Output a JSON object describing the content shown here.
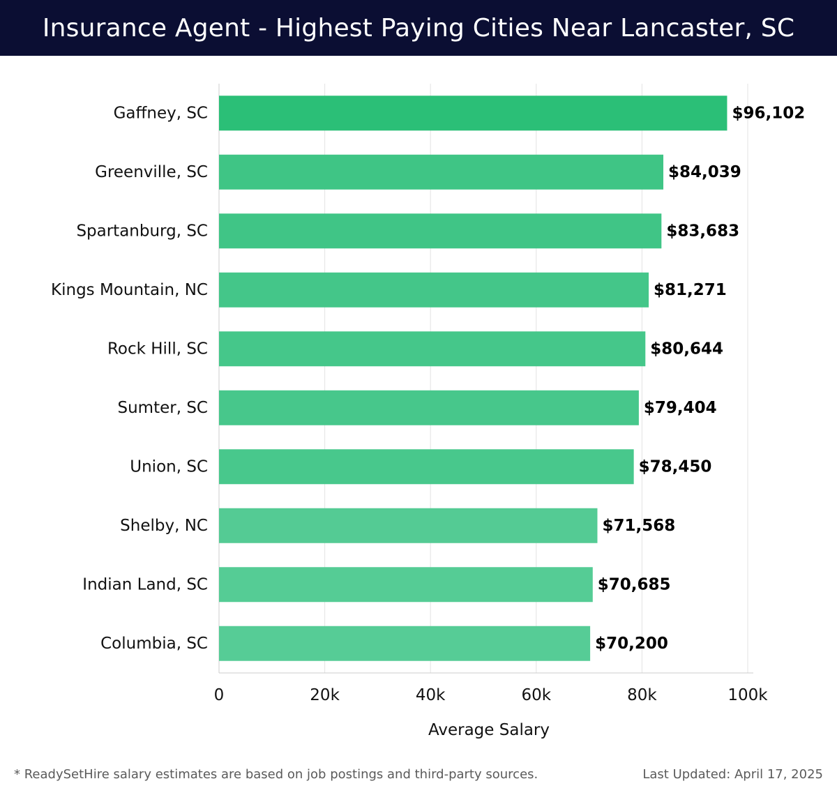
{
  "header": {
    "title": "Insurance Agent - Highest Paying Cities Near Lancaster, SC"
  },
  "chart_data": {
    "type": "bar",
    "orientation": "horizontal",
    "title": "Insurance Agent - Highest Paying Cities Near Lancaster, SC",
    "xlabel": "Average Salary",
    "ylabel": "",
    "categories": [
      "Gaffney, SC",
      "Greenville, SC",
      "Spartanburg, SC",
      "Kings Mountain, NC",
      "Rock Hill, SC",
      "Sumter, SC",
      "Union, SC",
      "Shelby, NC",
      "Indian Land, SC",
      "Columbia, SC"
    ],
    "values": [
      96102,
      84039,
      83683,
      81271,
      80644,
      79404,
      78450,
      71568,
      70685,
      70200
    ],
    "value_labels": [
      "$96,102",
      "$84,039",
      "$83,683",
      "$81,271",
      "$80,644",
      "$79,404",
      "$78,450",
      "$71,568",
      "$70,685",
      "$70,200"
    ],
    "xlim": [
      0,
      100000
    ],
    "x_ticks": [
      0,
      20000,
      40000,
      60000,
      80000,
      100000
    ],
    "x_tick_labels": [
      "0",
      "20k",
      "40k",
      "60k",
      "80k",
      "100k"
    ],
    "grid": "vertical",
    "colors": {
      "bar_top": "#2bbf77",
      "bar_mid": "#3ec687",
      "bar_low": "#56cc96",
      "grid": "#e3e3e3",
      "axis": "#cccccc"
    }
  },
  "footer": {
    "note": "* ReadySetHire salary estimates are based on job postings and third-party sources.",
    "updated": "Last Updated: April 17, 2025"
  }
}
